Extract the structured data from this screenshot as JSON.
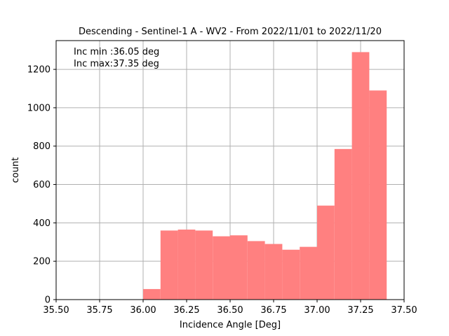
{
  "chart_data": {
    "type": "bar",
    "title": "Descending - Sentinel-1 A - WV2 - From 2022/11/01 to 2022/11/20",
    "xlabel": "Incidence Angle [Deg]",
    "ylabel": "count",
    "xlim": [
      35.5,
      37.5
    ],
    "ylim": [
      0,
      1350
    ],
    "grid": true,
    "bar_color": "#ff8080",
    "xticks": [
      35.5,
      35.75,
      36.0,
      36.25,
      36.5,
      36.75,
      37.0,
      37.25,
      37.5
    ],
    "xtick_labels": [
      "35.50",
      "35.75",
      "36.00",
      "36.25",
      "36.50",
      "36.75",
      "37.00",
      "37.25",
      "37.50"
    ],
    "yticks": [
      0,
      200,
      400,
      600,
      800,
      1000,
      1200
    ],
    "ytick_labels": [
      "0",
      "200",
      "400",
      "600",
      "800",
      "1000",
      "1200"
    ],
    "bins": [
      {
        "x0": 36.0,
        "x1": 36.1,
        "count": 55
      },
      {
        "x0": 36.1,
        "x1": 36.2,
        "count": 360
      },
      {
        "x0": 36.2,
        "x1": 36.3,
        "count": 365
      },
      {
        "x0": 36.3,
        "x1": 36.4,
        "count": 360
      },
      {
        "x0": 36.4,
        "x1": 36.5,
        "count": 330
      },
      {
        "x0": 36.5,
        "x1": 36.6,
        "count": 335
      },
      {
        "x0": 36.6,
        "x1": 36.7,
        "count": 305
      },
      {
        "x0": 36.7,
        "x1": 36.8,
        "count": 290
      },
      {
        "x0": 36.8,
        "x1": 36.9,
        "count": 260
      },
      {
        "x0": 36.9,
        "x1": 37.0,
        "count": 275
      },
      {
        "x0": 37.0,
        "x1": 37.1,
        "count": 490
      },
      {
        "x0": 37.1,
        "x1": 37.2,
        "count": 785
      },
      {
        "x0": 37.2,
        "x1": 37.3,
        "count": 1290
      },
      {
        "x0": 37.3,
        "x1": 37.4,
        "count": 1090
      }
    ],
    "annotations": [
      "Inc min :36.05 deg",
      "Inc max:37.35 deg"
    ]
  }
}
